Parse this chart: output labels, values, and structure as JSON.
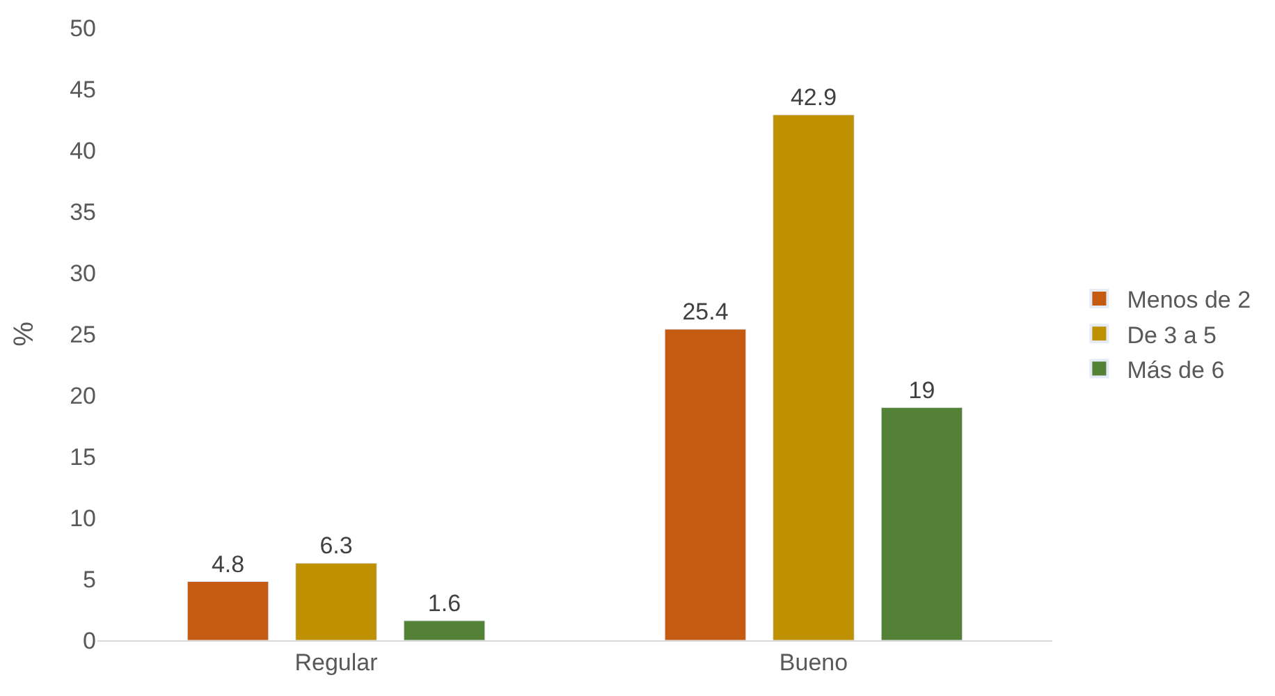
{
  "chart_data": {
    "type": "bar",
    "ylabel": "%",
    "categories": [
      "Regular",
      "Bueno"
    ],
    "series": [
      {
        "name": "Menos de 2",
        "color": "#c55a11",
        "values": [
          4.8,
          25.4
        ]
      },
      {
        "name": "De 3 a 5",
        "color": "#bf9000",
        "values": [
          6.3,
          42.9
        ]
      },
      {
        "name": "Más de 6",
        "color": "#538135",
        "values": [
          1.6,
          19
        ]
      }
    ],
    "ylim": [
      0,
      50
    ],
    "yticks": [
      0,
      5,
      10,
      15,
      20,
      25,
      30,
      35,
      40,
      45,
      50
    ],
    "grid": false,
    "legend": "right",
    "data_labels": true
  }
}
